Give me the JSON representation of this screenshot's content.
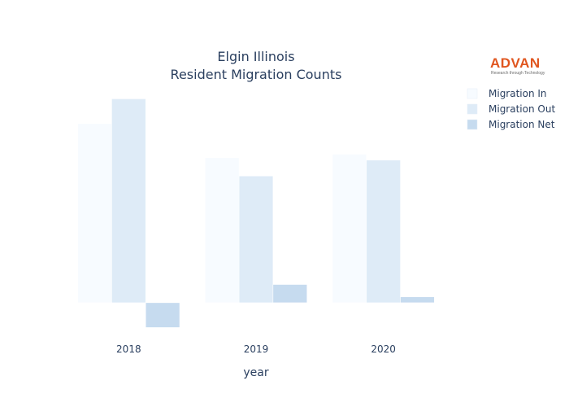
{
  "chart_data": {
    "type": "bar",
    "title_line1": "Elgin Illinois",
    "title_line2": "Resident Migration Counts",
    "xlabel": "year",
    "ylabel": "",
    "categories": [
      "2018",
      "2019",
      "2020"
    ],
    "series": [
      {
        "name": "Migration In",
        "values": [
          4620,
          3740,
          3830
        ],
        "color": "#f7fbff"
      },
      {
        "name": "Migration Out",
        "values": [
          5260,
          3270,
          3680
        ],
        "color": "#deebf7"
      },
      {
        "name": "Migration Net",
        "values": [
          -640,
          470,
          150
        ],
        "color": "#c6dbef"
      }
    ],
    "ylim": [
      -800,
      5500
    ],
    "grid": false,
    "legend_position": "top-right"
  },
  "logo": {
    "name": "ADVAN",
    "tagline": "Research through Technology"
  }
}
